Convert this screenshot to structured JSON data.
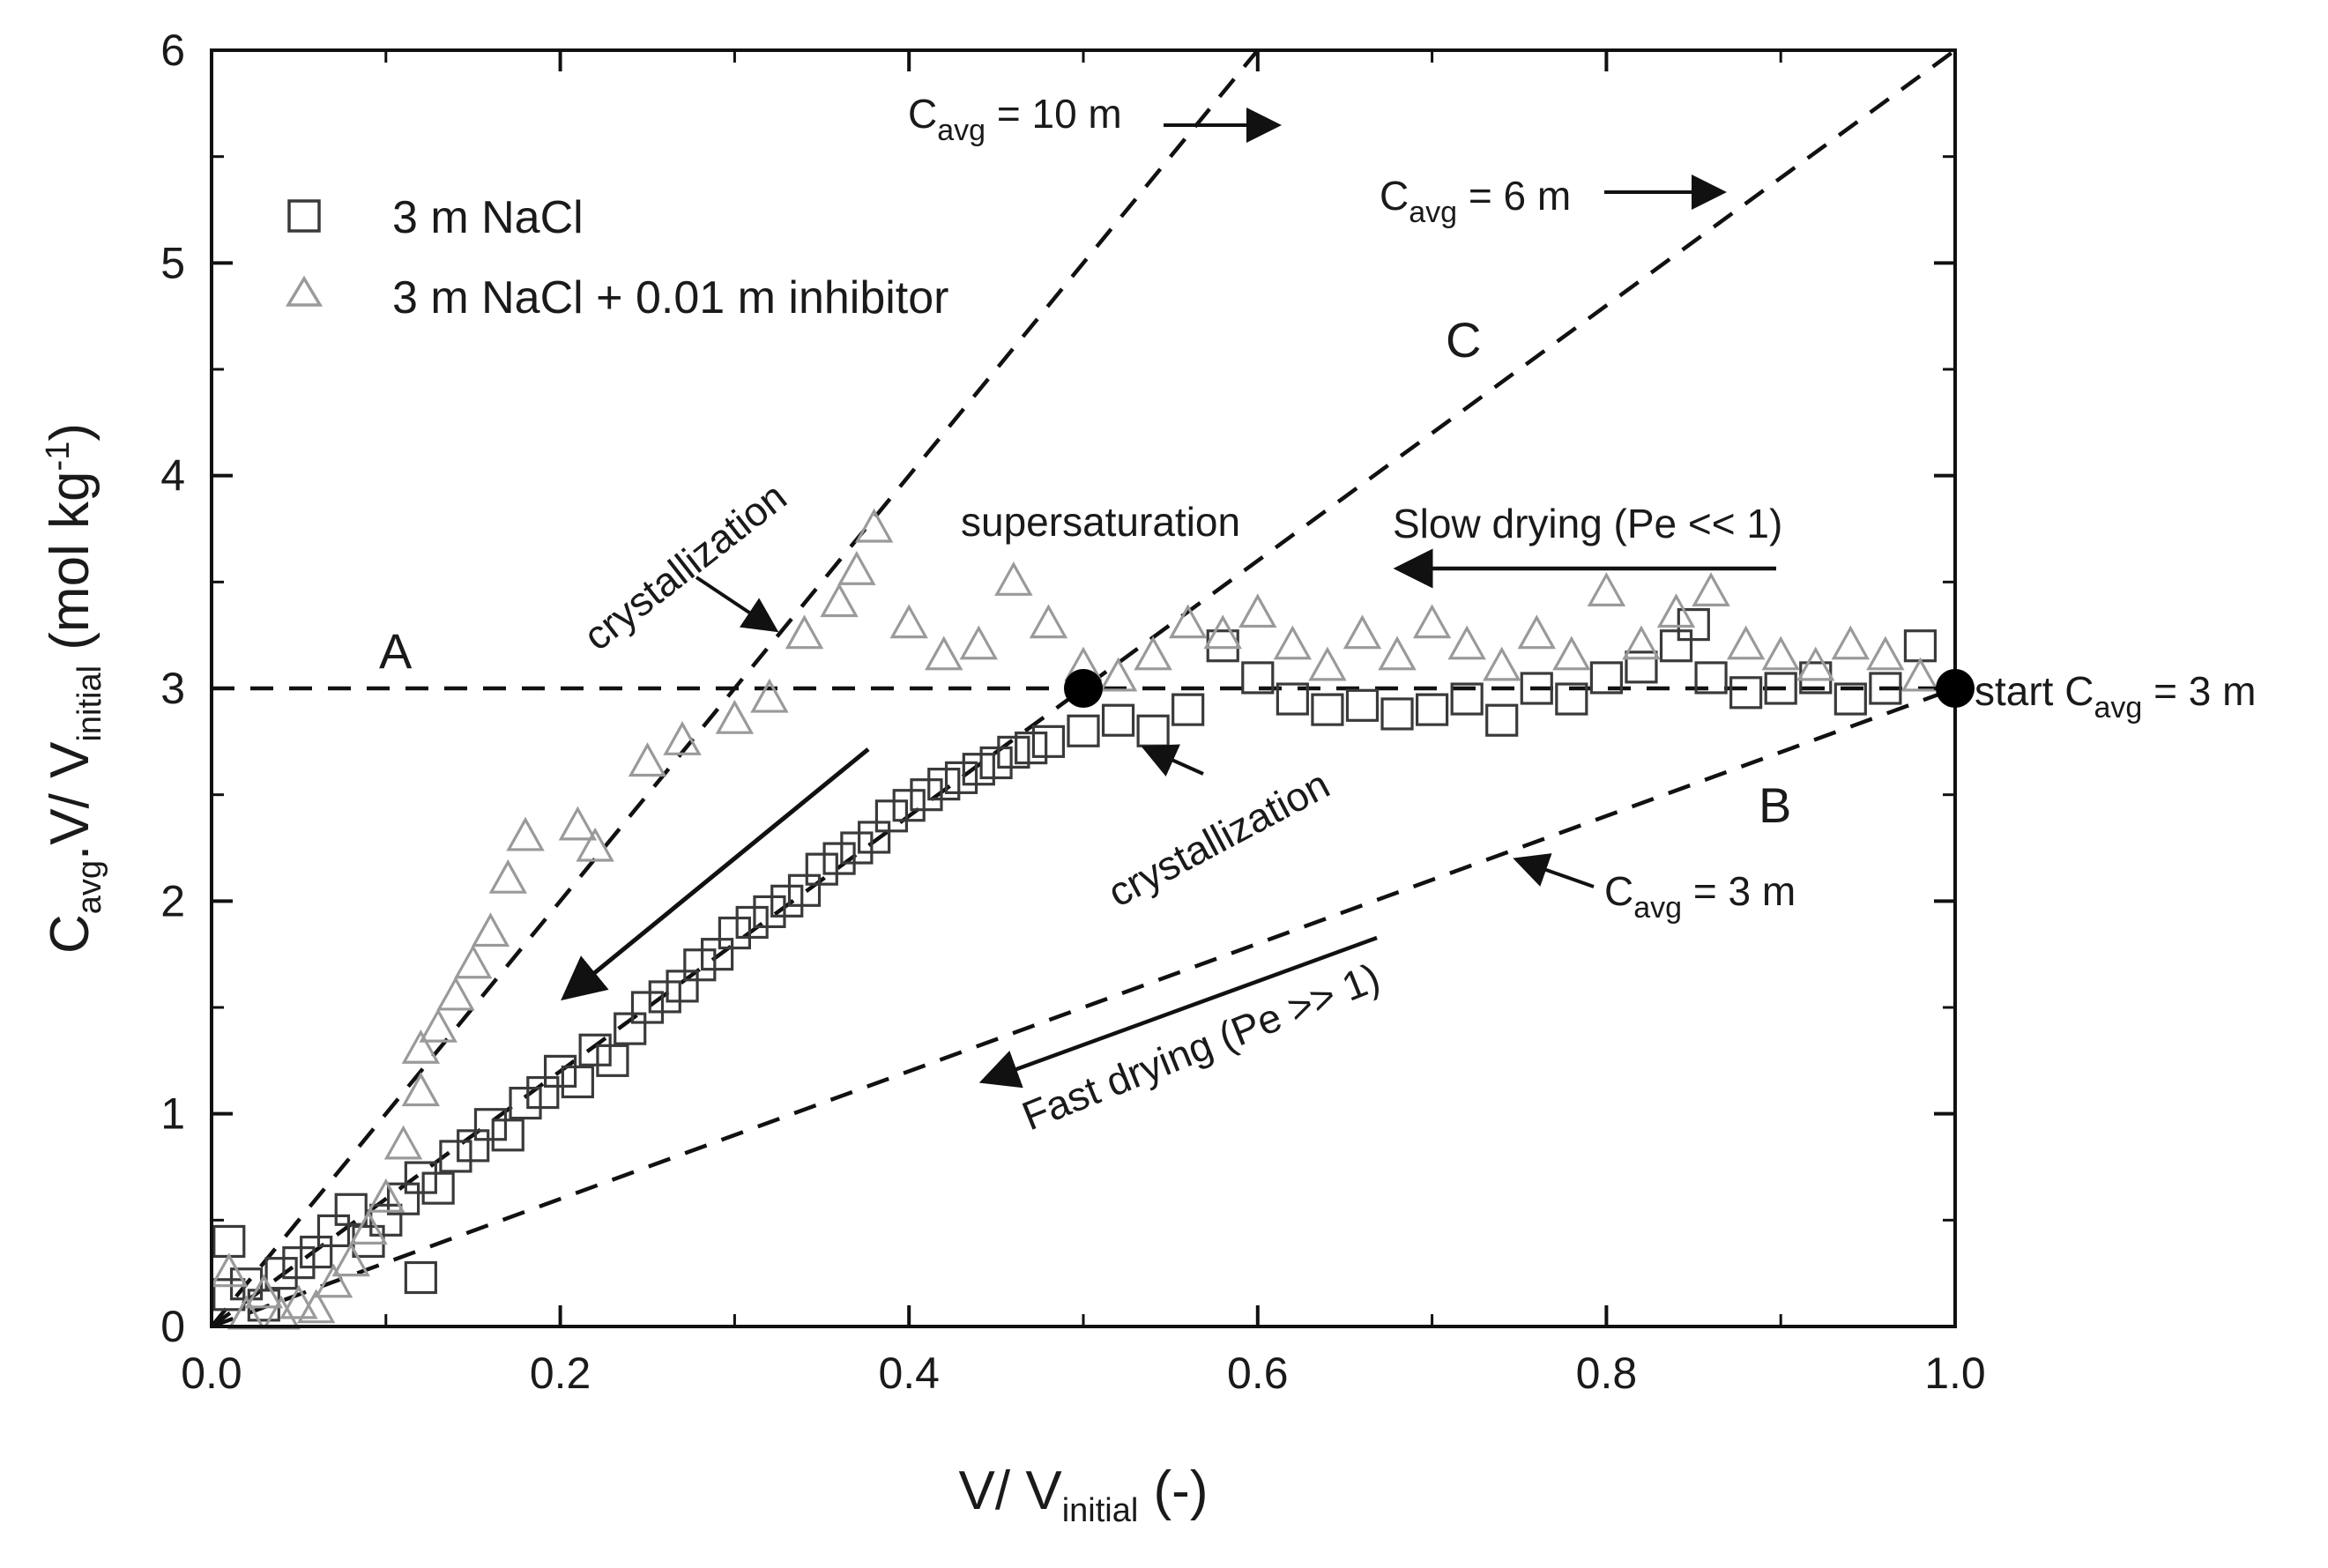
{
  "chart_data": {
    "type": "scatter",
    "xlim": [
      0.0,
      1.0
    ],
    "ylim": [
      0,
      6
    ],
    "x_ticks": [
      "0.0",
      "0.2",
      "0.4",
      "0.6",
      "0.8",
      "1.0"
    ],
    "y_ticks": [
      "0",
      "1",
      "2",
      "3",
      "4",
      "5",
      "6"
    ],
    "xlabel": {
      "main": "V/ V",
      "sub": "initial",
      "suffix": " (-)"
    },
    "ylabel": {
      "c": "C",
      "avg_sub": "avg",
      "mid": ".V/ V",
      "init_sub": "initial",
      "unit": " (mol kg",
      "sup": "-1",
      "close": ")"
    },
    "grid": false,
    "legend_position": "top-left",
    "series": [
      {
        "name": "3 m NaCl",
        "marker": "square",
        "color": "#3a3a3a",
        "points": [
          [
            0.01,
            0.4
          ],
          [
            0.01,
            0.15
          ],
          [
            0.02,
            0.2
          ],
          [
            0.03,
            0.1
          ],
          [
            0.04,
            0.25
          ],
          [
            0.05,
            0.3
          ],
          [
            0.06,
            0.35
          ],
          [
            0.07,
            0.45
          ],
          [
            0.08,
            0.55
          ],
          [
            0.09,
            0.4
          ],
          [
            0.1,
            0.5
          ],
          [
            0.11,
            0.6
          ],
          [
            0.12,
            0.7
          ],
          [
            0.12,
            0.23
          ],
          [
            0.13,
            0.65
          ],
          [
            0.14,
            0.8
          ],
          [
            0.15,
            0.85
          ],
          [
            0.16,
            0.95
          ],
          [
            0.17,
            0.9
          ],
          [
            0.18,
            1.05
          ],
          [
            0.19,
            1.1
          ],
          [
            0.2,
            1.2
          ],
          [
            0.21,
            1.15
          ],
          [
            0.22,
            1.3
          ],
          [
            0.23,
            1.25
          ],
          [
            0.24,
            1.4
          ],
          [
            0.25,
            1.5
          ],
          [
            0.26,
            1.55
          ],
          [
            0.27,
            1.6
          ],
          [
            0.28,
            1.7
          ],
          [
            0.29,
            1.75
          ],
          [
            0.3,
            1.85
          ],
          [
            0.31,
            1.9
          ],
          [
            0.32,
            1.95
          ],
          [
            0.33,
            2.0
          ],
          [
            0.34,
            2.05
          ],
          [
            0.35,
            2.15
          ],
          [
            0.36,
            2.2
          ],
          [
            0.37,
            2.25
          ],
          [
            0.38,
            2.3
          ],
          [
            0.39,
            2.4
          ],
          [
            0.4,
            2.45
          ],
          [
            0.41,
            2.5
          ],
          [
            0.42,
            2.55
          ],
          [
            0.43,
            2.58
          ],
          [
            0.44,
            2.62
          ],
          [
            0.45,
            2.65
          ],
          [
            0.46,
            2.7
          ],
          [
            0.47,
            2.72
          ],
          [
            0.48,
            2.75
          ],
          [
            0.5,
            2.8
          ],
          [
            0.52,
            2.85
          ],
          [
            0.54,
            2.8
          ],
          [
            0.56,
            2.9
          ],
          [
            0.58,
            3.2
          ],
          [
            0.6,
            3.05
          ],
          [
            0.62,
            2.95
          ],
          [
            0.64,
            2.9
          ],
          [
            0.66,
            2.92
          ],
          [
            0.68,
            2.88
          ],
          [
            0.7,
            2.9
          ],
          [
            0.72,
            2.95
          ],
          [
            0.74,
            2.85
          ],
          [
            0.76,
            3.0
          ],
          [
            0.78,
            2.95
          ],
          [
            0.8,
            3.05
          ],
          [
            0.82,
            3.1
          ],
          [
            0.84,
            3.2
          ],
          [
            0.85,
            3.3
          ],
          [
            0.86,
            3.05
          ],
          [
            0.88,
            2.98
          ],
          [
            0.9,
            3.0
          ],
          [
            0.92,
            3.05
          ],
          [
            0.94,
            2.95
          ],
          [
            0.96,
            3.0
          ],
          [
            0.98,
            3.2
          ]
        ]
      },
      {
        "name": "3 m NaCl + 0.01 m inhibitor",
        "marker": "triangle",
        "color": "#9a9a9a",
        "points": [
          [
            0.01,
            0.25
          ],
          [
            0.02,
            0.05
          ],
          [
            0.03,
            0.15
          ],
          [
            0.04,
            0.05
          ],
          [
            0.05,
            0.1
          ],
          [
            0.06,
            0.08
          ],
          [
            0.07,
            0.2
          ],
          [
            0.08,
            0.3
          ],
          [
            0.09,
            0.45
          ],
          [
            0.1,
            0.6
          ],
          [
            0.11,
            0.85
          ],
          [
            0.12,
            1.1
          ],
          [
            0.12,
            1.3
          ],
          [
            0.13,
            1.4
          ],
          [
            0.14,
            1.55
          ],
          [
            0.15,
            1.7
          ],
          [
            0.16,
            1.85
          ],
          [
            0.17,
            2.1
          ],
          [
            0.18,
            2.3
          ],
          [
            0.21,
            2.35
          ],
          [
            0.22,
            2.25
          ],
          [
            0.25,
            2.65
          ],
          [
            0.27,
            2.75
          ],
          [
            0.3,
            2.85
          ],
          [
            0.32,
            2.95
          ],
          [
            0.34,
            3.25
          ],
          [
            0.36,
            3.4
          ],
          [
            0.37,
            3.55
          ],
          [
            0.38,
            3.75
          ],
          [
            0.4,
            3.3
          ],
          [
            0.42,
            3.15
          ],
          [
            0.44,
            3.2
          ],
          [
            0.46,
            3.5
          ],
          [
            0.48,
            3.3
          ],
          [
            0.5,
            3.1
          ],
          [
            0.52,
            3.05
          ],
          [
            0.54,
            3.15
          ],
          [
            0.56,
            3.3
          ],
          [
            0.58,
            3.25
          ],
          [
            0.6,
            3.35
          ],
          [
            0.62,
            3.2
          ],
          [
            0.64,
            3.1
          ],
          [
            0.66,
            3.25
          ],
          [
            0.68,
            3.15
          ],
          [
            0.7,
            3.3
          ],
          [
            0.72,
            3.2
          ],
          [
            0.74,
            3.1
          ],
          [
            0.76,
            3.25
          ],
          [
            0.78,
            3.15
          ],
          [
            0.8,
            3.45
          ],
          [
            0.82,
            3.2
          ],
          [
            0.84,
            3.35
          ],
          [
            0.86,
            3.45
          ],
          [
            0.88,
            3.2
          ],
          [
            0.9,
            3.15
          ],
          [
            0.92,
            3.1
          ],
          [
            0.94,
            3.2
          ],
          [
            0.96,
            3.15
          ],
          [
            0.98,
            3.05
          ]
        ]
      }
    ],
    "reference_lines": [
      {
        "label": "A",
        "x1": 0.0,
        "y1": 3.0,
        "x2": 1.0,
        "y2": 3.0
      },
      {
        "label": "B",
        "x1": 0.0,
        "y1": 0.0,
        "x2": 1.0,
        "y2": 3.0
      },
      {
        "label": "C",
        "x1": 0.0,
        "y1": 0.0,
        "x2": 1.0,
        "y2": 6.0
      },
      {
        "label": "",
        "x1": 0.0,
        "y1": 0.0,
        "x2": 0.6,
        "y2": 6.0
      }
    ],
    "marked_points": [
      {
        "x": 0.5,
        "y": 3.0
      },
      {
        "x": 1.0,
        "y": 3.0
      }
    ],
    "annotations": {
      "label_a": "A",
      "label_b": "B",
      "label_c": "C",
      "cavg_10": {
        "c": "C",
        "sub": "avg",
        "rest": " = 10 m"
      },
      "cavg_6": {
        "c": "C",
        "sub": "avg",
        "rest": " = 6 m"
      },
      "cavg_3": {
        "c": "C",
        "sub": "avg",
        "rest": " = 3 m"
      },
      "start": {
        "pre": "start C",
        "sub": "avg",
        "rest": " = 3 m"
      },
      "supersaturation": "supersaturation",
      "crystallization_1": "crystallization",
      "crystallization_2": "crystallization",
      "slow_drying": "Slow  drying (Pe << 1)",
      "fast_drying": "Fast  drying (Pe >> 1)"
    }
  }
}
